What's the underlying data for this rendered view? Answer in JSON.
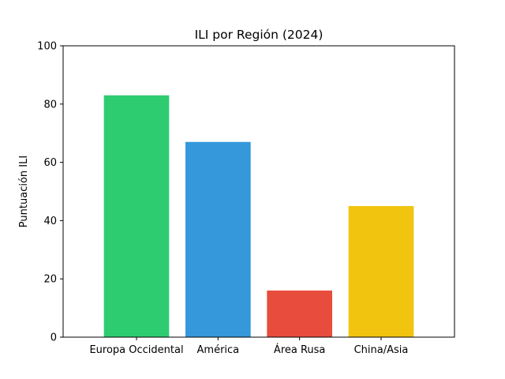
{
  "chart_data": {
    "type": "bar",
    "title": "ILI por Región (2024)",
    "xlabel": "",
    "ylabel": "Puntuación ILI",
    "categories": [
      "Europa Occidental",
      "América",
      "Área Rusa",
      "China/Asia"
    ],
    "values": [
      83,
      67,
      16,
      45
    ],
    "colors": [
      "#2ecc71",
      "#3498db",
      "#e74c3c",
      "#f1c40f"
    ],
    "ylim": [
      0,
      100
    ],
    "yticks": [
      0,
      20,
      40,
      60,
      80,
      100
    ],
    "grid": false,
    "legend": "none"
  }
}
